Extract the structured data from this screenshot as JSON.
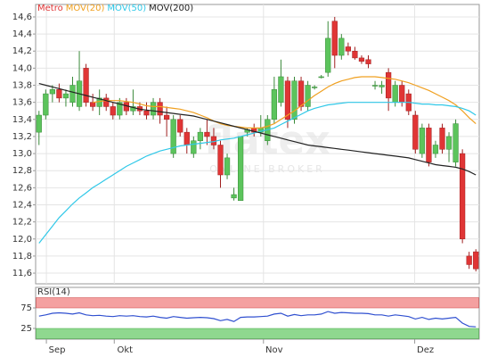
{
  "chart_data": [
    {
      "type": "candlestick",
      "watermark": "flatex",
      "watermark_sub": "ONLINE BROKER",
      "series": [
        {
          "name": "Metro",
          "color": "#e03535",
          "up_color": "#5cc45c",
          "values": [
            [
              13.25,
              13.5,
              13.1,
              13.45
            ],
            [
              13.45,
              13.75,
              13.4,
              13.7
            ],
            [
              13.7,
              13.8,
              13.6,
              13.75
            ],
            [
              13.75,
              13.82,
              13.6,
              13.65
            ],
            [
              13.65,
              13.75,
              13.55,
              13.7
            ],
            [
              13.6,
              13.9,
              13.55,
              13.8
            ],
            [
              13.55,
              14.2,
              13.5,
              13.85
            ],
            [
              14.0,
              14.05,
              13.55,
              13.6
            ],
            [
              13.6,
              13.7,
              13.5,
              13.55
            ],
            [
              13.55,
              13.75,
              13.45,
              13.65
            ],
            [
              13.65,
              13.7,
              13.5,
              13.55
            ],
            [
              13.55,
              13.6,
              13.4,
              13.45
            ],
            [
              13.45,
              13.65,
              13.4,
              13.6
            ],
            [
              13.6,
              13.65,
              13.45,
              13.5
            ],
            [
              13.5,
              13.75,
              13.45,
              13.55
            ],
            [
              13.55,
              13.6,
              13.45,
              13.5
            ],
            [
              13.5,
              13.6,
              13.4,
              13.45
            ],
            [
              13.45,
              13.65,
              13.4,
              13.6
            ],
            [
              13.6,
              13.65,
              13.35,
              13.45
            ],
            [
              13.45,
              13.55,
              13.2,
              13.4
            ],
            [
              13.0,
              13.45,
              12.95,
              13.4
            ],
            [
              13.4,
              13.45,
              13.2,
              13.25
            ],
            [
              13.25,
              13.3,
              13.0,
              13.1
            ],
            [
              13.0,
              13.2,
              12.95,
              13.15
            ],
            [
              13.15,
              13.3,
              13.05,
              13.25
            ],
            [
              13.25,
              13.4,
              13.1,
              13.2
            ],
            [
              13.2,
              13.3,
              13.05,
              13.1
            ],
            [
              13.1,
              13.15,
              12.6,
              12.75
            ],
            [
              12.75,
              13.0,
              12.7,
              12.95
            ],
            [
              12.48,
              12.6,
              12.45,
              12.52
            ],
            [
              12.45,
              13.2,
              12.45,
              13.2
            ],
            [
              13.25,
              13.3,
              13.2,
              13.28
            ],
            [
              13.3,
              13.35,
              13.2,
              13.25
            ],
            [
              13.25,
              13.45,
              13.2,
              13.3
            ],
            [
              13.15,
              13.45,
              13.1,
              13.4
            ],
            [
              13.4,
              13.9,
              13.35,
              13.75
            ],
            [
              13.6,
              14.1,
              13.55,
              13.9
            ],
            [
              13.85,
              13.9,
              13.3,
              13.4
            ],
            [
              13.4,
              13.9,
              13.35,
              13.85
            ],
            [
              13.85,
              13.9,
              13.5,
              13.55
            ],
            [
              13.55,
              13.85,
              13.5,
              13.8
            ],
            [
              13.78,
              13.8,
              13.75,
              13.78
            ],
            [
              13.9,
              13.92,
              13.88,
              13.9
            ],
            [
              13.95,
              14.55,
              13.9,
              14.35
            ],
            [
              14.55,
              14.6,
              14.0,
              14.15
            ],
            [
              14.15,
              14.4,
              14.1,
              14.35
            ],
            [
              14.25,
              14.3,
              14.15,
              14.2
            ],
            [
              14.2,
              14.25,
              14.1,
              14.12
            ],
            [
              14.12,
              14.15,
              14.05,
              14.08
            ],
            [
              14.1,
              14.15,
              14.0,
              14.05
            ],
            [
              13.8,
              13.85,
              13.75,
              13.8
            ],
            [
              13.78,
              13.85,
              13.7,
              13.8
            ],
            [
              13.95,
              14.0,
              13.5,
              13.65
            ],
            [
              13.6,
              13.85,
              13.55,
              13.8
            ],
            [
              13.8,
              13.85,
              13.55,
              13.6
            ],
            [
              13.7,
              13.75,
              13.45,
              13.5
            ],
            [
              13.45,
              13.5,
              13.0,
              13.05
            ],
            [
              13.0,
              13.35,
              12.95,
              13.3
            ],
            [
              13.3,
              13.35,
              12.85,
              12.9
            ],
            [
              13.0,
              13.15,
              12.95,
              13.1
            ],
            [
              13.3,
              13.35,
              13.0,
              13.05
            ],
            [
              13.05,
              13.25,
              12.9,
              13.2
            ],
            [
              12.9,
              13.4,
              12.85,
              13.35
            ],
            [
              13.0,
              13.05,
              11.95,
              12.0
            ],
            [
              11.8,
              11.85,
              11.65,
              11.7
            ],
            [
              11.85,
              11.88,
              11.62,
              11.65
            ]
          ]
        },
        {
          "name": "MOV(20)",
          "color": "#f0a020",
          "type": "line",
          "values": [
            null,
            null,
            null,
            null,
            null,
            null,
            null,
            null,
            13.6,
            13.61,
            13.62,
            13.62,
            13.62,
            13.61,
            13.6,
            13.58,
            13.56,
            13.55,
            13.55,
            13.54,
            13.53,
            13.52,
            13.5,
            13.48,
            13.45,
            13.42,
            13.38,
            13.35,
            13.33,
            13.32,
            13.31,
            13.3,
            13.3,
            13.3,
            13.32,
            13.35,
            13.4,
            13.45,
            13.5,
            13.56,
            13.62,
            13.68,
            13.73,
            13.78,
            13.82,
            13.85,
            13.87,
            13.89,
            13.9,
            13.9,
            13.9,
            13.89,
            13.88,
            13.87,
            13.85,
            13.83,
            13.8,
            13.77,
            13.74,
            13.7,
            13.66,
            13.62,
            13.57,
            13.5,
            13.42,
            13.35
          ]
        },
        {
          "name": "MOV(50)",
          "color": "#30c8e8",
          "type": "line",
          "values": [
            11.95,
            12.05,
            12.15,
            12.25,
            12.33,
            12.41,
            12.48,
            12.54,
            12.6,
            12.65,
            12.7,
            12.75,
            12.8,
            12.85,
            12.89,
            12.93,
            12.97,
            13.0,
            13.03,
            13.05,
            13.07,
            13.09,
            13.1,
            13.11,
            13.12,
            13.13,
            13.14,
            13.16,
            13.17,
            13.18,
            13.2,
            13.22,
            13.24,
            13.26,
            13.28,
            13.3,
            13.34,
            13.38,
            13.42,
            13.46,
            13.5,
            13.53,
            13.55,
            13.57,
            13.58,
            13.59,
            13.6,
            13.6,
            13.6,
            13.6,
            13.6,
            13.6,
            13.6,
            13.6,
            13.6,
            13.6,
            13.59,
            13.58,
            13.58,
            13.57,
            13.57,
            13.56,
            13.55,
            13.53,
            13.5,
            13.45
          ]
        },
        {
          "name": "MOV(200)",
          "color": "#222222",
          "type": "line",
          "values": [
            13.82,
            13.8,
            13.78,
            13.76,
            13.74,
            13.72,
            13.7,
            13.68,
            13.66,
            13.64,
            13.62,
            13.6,
            13.58,
            13.56,
            13.54,
            13.52,
            13.51,
            13.5,
            13.49,
            13.48,
            13.47,
            13.46,
            13.45,
            13.44,
            13.42,
            13.4,
            13.38,
            13.36,
            13.34,
            13.32,
            13.3,
            13.28,
            13.26,
            13.24,
            13.22,
            13.2,
            13.18,
            13.16,
            13.14,
            13.12,
            13.1,
            13.09,
            13.08,
            13.07,
            13.06,
            13.05,
            13.04,
            13.03,
            13.02,
            13.01,
            13.0,
            12.99,
            12.98,
            12.97,
            12.96,
            12.95,
            12.93,
            12.91,
            12.89,
            12.87,
            12.86,
            12.85,
            12.84,
            12.82,
            12.79,
            12.75
          ]
        }
      ],
      "ylim": [
        11.475,
        14.746
      ],
      "yticks": [
        {
          "value": 11.6,
          "label": "11,6"
        },
        {
          "value": 11.8,
          "label": "11,8"
        },
        {
          "value": 12.0,
          "label": "12,0"
        },
        {
          "value": 12.2,
          "label": "12,2"
        },
        {
          "value": 12.4,
          "label": "12,4"
        },
        {
          "value": 12.6,
          "label": "12,6"
        },
        {
          "value": 12.8,
          "label": "12,8"
        },
        {
          "value": 13.0,
          "label": "13,0"
        },
        {
          "value": 13.2,
          "label": "13,2"
        },
        {
          "value": 13.4,
          "label": "13,4"
        },
        {
          "value": 13.6,
          "label": "13,6"
        },
        {
          "value": 13.8,
          "label": "13,8"
        },
        {
          "value": 14.0,
          "label": "14,0"
        },
        {
          "value": 14.2,
          "label": "14,2"
        },
        {
          "value": 14.4,
          "label": "14,4"
        },
        {
          "value": 14.6,
          "label": "14,6"
        }
      ],
      "xlim": [
        -0.5,
        65.5
      ],
      "xticks": [
        {
          "value": 1.1,
          "label": "Sep"
        },
        {
          "value": 11.2,
          "label": "Okt"
        },
        {
          "value": 33.4,
          "label": "Nov"
        },
        {
          "value": 55.9,
          "label": "Dez"
        }
      ],
      "grid": true
    },
    {
      "type": "line",
      "series": [
        {
          "name": "RSI(14)",
          "color": "#3050d0",
          "values": [
            55,
            58,
            62,
            63,
            62,
            60,
            63,
            58,
            56,
            57,
            55,
            54,
            56,
            55,
            56,
            54,
            53,
            55,
            52,
            50,
            54,
            52,
            50,
            51,
            52,
            51,
            49,
            44,
            47,
            42,
            52,
            53,
            53,
            54,
            55,
            60,
            62,
            55,
            59,
            56,
            58,
            58,
            60,
            66,
            62,
            64,
            63,
            62,
            62,
            61,
            58,
            58,
            55,
            58,
            56,
            54,
            48,
            52,
            47,
            50,
            48,
            50,
            52,
            38,
            30,
            29
          ]
        }
      ],
      "ylim": [
        0,
        100
      ],
      "yticks": [
        25,
        75
      ],
      "zone_colors": [
        "#8fd88f",
        "#f4a0a0"
      ]
    }
  ]
}
